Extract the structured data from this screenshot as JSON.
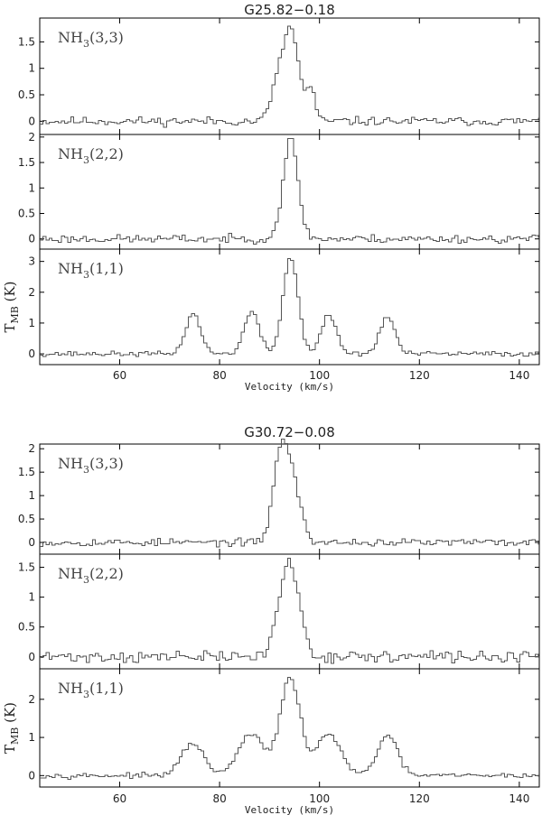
{
  "figure": {
    "xlabel": "Velocity (km/s)",
    "ylabel": "T",
    "ylabel_sub": "MB",
    "ylabel_unit": " (K)"
  },
  "chart_data": [
    {
      "title": "G25.82−0.18",
      "type": "line",
      "xlim": [
        44,
        144
      ],
      "xticks": [
        60,
        80,
        100,
        120,
        140
      ],
      "panels": [
        {
          "label_main": "NH",
          "label_sub": "3",
          "label_rest": "(3,3)",
          "ylim": [
            -0.25,
            1.95
          ],
          "yticks": [
            0,
            0.5,
            1,
            1.5
          ],
          "yticklabels": [
            "0",
            "0.5",
            "1",
            "1.5"
          ],
          "peaks": [
            {
              "v": 91.2,
              "amp": 0.55,
              "w": 1.4
            },
            {
              "v": 94.0,
              "amp": 1.7,
              "w": 1.6
            },
            {
              "v": 98.0,
              "amp": 0.6,
              "w": 0.8
            }
          ],
          "noise": 0.05,
          "seed": 11
        },
        {
          "label_main": "NH",
          "label_sub": "3",
          "label_rest": "(2,2)",
          "ylim": [
            -0.2,
            2.05
          ],
          "yticks": [
            0,
            0.5,
            1,
            1.5,
            2
          ],
          "yticklabels": [
            "0",
            "0.5",
            "1",
            "1.5",
            "2"
          ],
          "peaks": [
            {
              "v": 93.9,
              "amp": 1.95,
              "w": 1.5
            }
          ],
          "noise": 0.05,
          "seed": 23
        },
        {
          "label_main": "NH",
          "label_sub": "3",
          "label_rest": "(1,1)",
          "ylim": [
            -0.35,
            3.4
          ],
          "yticks": [
            0,
            1,
            2,
            3
          ],
          "yticklabels": [
            "0",
            "1",
            "2",
            "3"
          ],
          "peaks": [
            {
              "v": 74.4,
              "amp": 1.3,
              "w": 1.5
            },
            {
              "v": 86.1,
              "amp": 1.35,
              "w": 1.5
            },
            {
              "v": 93.9,
              "amp": 3.15,
              "w": 1.5
            },
            {
              "v": 101.6,
              "amp": 1.25,
              "w": 1.5
            },
            {
              "v": 113.3,
              "amp": 1.2,
              "w": 1.5
            }
          ],
          "noise": 0.05,
          "seed": 37
        }
      ]
    },
    {
      "title": "G30.72−0.08",
      "type": "line",
      "xlim": [
        44,
        144
      ],
      "xticks": [
        60,
        80,
        100,
        120,
        140
      ],
      "panels": [
        {
          "label_main": "NH",
          "label_sub": "3",
          "label_rest": "(3,3)",
          "ylim": [
            -0.25,
            2.1
          ],
          "yticks": [
            0,
            0.5,
            1,
            1.5,
            2
          ],
          "yticklabels": [
            "0",
            "0.5",
            "1",
            "1.5",
            "2"
          ],
          "peaks": [
            {
              "v": 91.6,
              "amp": 1.45,
              "w": 1.4
            },
            {
              "v": 94.0,
              "amp": 1.45,
              "w": 1.7
            }
          ],
          "noise": 0.05,
          "seed": 53
        },
        {
          "label_main": "NH",
          "label_sub": "3",
          "label_rest": "(2,2)",
          "ylim": [
            -0.2,
            1.72
          ],
          "yticks": [
            0,
            0.5,
            1,
            1.5
          ],
          "yticklabels": [
            "0",
            "0.5",
            "1",
            "1.5"
          ],
          "peaks": [
            {
              "v": 93.6,
              "amp": 1.6,
              "w": 2.0
            }
          ],
          "noise": 0.06,
          "seed": 71
        },
        {
          "label_main": "NH",
          "label_sub": "3",
          "label_rest": "(1,1)",
          "ylim": [
            -0.3,
            2.8
          ],
          "yticks": [
            0,
            1,
            2
          ],
          "yticklabels": [
            "0",
            "1",
            "2"
          ],
          "peaks": [
            {
              "v": 74.3,
              "amp": 0.85,
              "w": 2.2
            },
            {
              "v": 86.0,
              "amp": 1.1,
              "w": 2.5
            },
            {
              "v": 93.8,
              "amp": 2.55,
              "w": 2.0
            },
            {
              "v": 101.5,
              "amp": 1.1,
              "w": 2.4
            },
            {
              "v": 113.3,
              "amp": 1.05,
              "w": 2.0
            }
          ],
          "noise": 0.04,
          "seed": 97
        }
      ]
    }
  ]
}
